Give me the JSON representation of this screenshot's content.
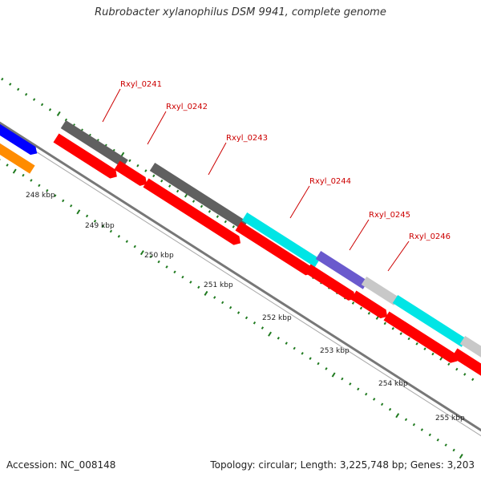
{
  "title": "Rubrobacter xylanophilus DSM 9941, complete genome",
  "footer": {
    "accession": "Accession: NC_008148",
    "summary": "Topology: circular; Length: 3,225,748 bp; Genes: 3,203"
  },
  "colors": {
    "backbone": "#8a8a8a",
    "tick": "#1f7a1f",
    "cds": "#ff0000",
    "gene_label": "#cc0000",
    "gene_dark": "#606060",
    "gene_cyan": "#00e5e5",
    "gene_purple": "#6a5acd",
    "gene_light": "#c8c8c8",
    "gene_blue": "#0000ff",
    "gene_orange": "#ff8c00"
  },
  "scale_labels": [
    "248 kbp",
    "249 kbp",
    "250 kbp",
    "251 kbp",
    "252 kbp",
    "253 kbp",
    "254 kbp",
    "255 kbp"
  ],
  "gene_labels": [
    "Rxyl_0241",
    "Rxyl_0242",
    "Rxyl_0243",
    "Rxyl_0244",
    "Rxyl_0245",
    "Rxyl_0246"
  ]
}
